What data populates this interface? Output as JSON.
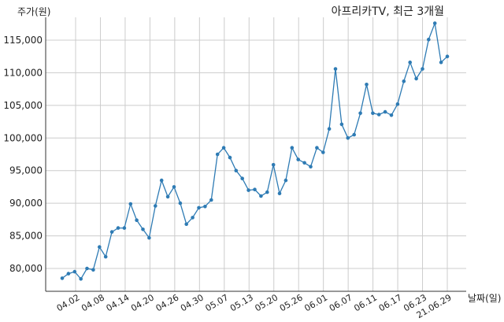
{
  "chart_data": {
    "type": "line",
    "title": "아프리카TV, 최근 3개월",
    "ylabel": "주가(원)",
    "xlabel": "날짜(일)",
    "ylim": [
      76500,
      118500
    ],
    "yticks": [
      80000,
      85000,
      90000,
      95000,
      100000,
      105000,
      110000,
      115000
    ],
    "ytick_labels": [
      "80,000",
      "85,000",
      "90,000",
      "95,000",
      "100,000",
      "105,000",
      "110,000",
      "115,000"
    ],
    "xtick_labels": [
      "04.02",
      "04.08",
      "04.14",
      "04.20",
      "04.26",
      "04.30",
      "05.07",
      "05.13",
      "05.20",
      "05.26",
      "06.01",
      "06.07",
      "06.11",
      "06.17",
      "06.23",
      "21.06.29"
    ],
    "grid": true,
    "color": "#2e7bb4",
    "values": [
      78500,
      79200,
      79500,
      78400,
      80000,
      79800,
      83300,
      81800,
      85600,
      86200,
      86200,
      89900,
      87400,
      86000,
      84700,
      89600,
      93500,
      91000,
      92500,
      90000,
      86800,
      87800,
      89300,
      89500,
      90500,
      97500,
      98500,
      97000,
      95000,
      93800,
      92000,
      92100,
      91100,
      91700,
      95900,
      91500,
      93500,
      98500,
      96700,
      96200,
      95600,
      98500,
      97800,
      101400,
      110600,
      102100,
      100000,
      100500,
      103800,
      108200,
      103800,
      103600,
      104000,
      103500,
      105200,
      108700,
      111600,
      109100,
      110600,
      115100,
      117600,
      111600,
      112500
    ]
  }
}
